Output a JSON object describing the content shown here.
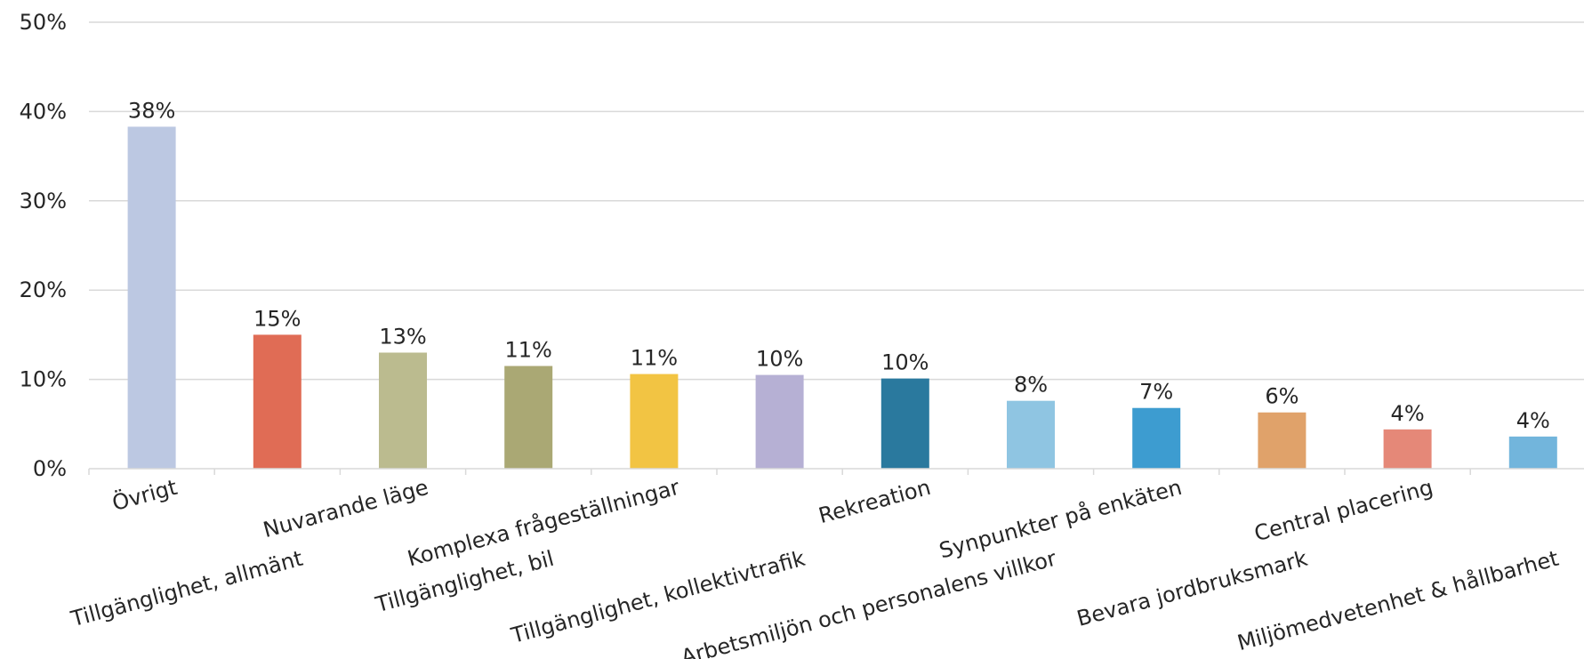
{
  "chart_data": {
    "type": "bar",
    "title": "",
    "xlabel": "",
    "ylabel": "",
    "ylim": [
      0,
      50
    ],
    "y_ticks": [
      "0%",
      "10%",
      "20%",
      "30%",
      "40%",
      "50%"
    ],
    "grid": true,
    "legend": "none",
    "categories": [
      "Övrigt",
      "Tillgänglighet, allmänt",
      "Nuvarande läge",
      "Tillgänglighet, bil",
      "Komplexa frågeställningar",
      "Tillgänglighet, kollektivtrafik",
      "Rekreation",
      "Arbetsmiljön och personalens villkor",
      "Synpunkter på enkäten",
      "Bevara jordbruksmark",
      "Central placering",
      "Miljömedvetenhet & hållbarhet"
    ],
    "values": [
      38.3,
      15.0,
      13.0,
      11.5,
      10.6,
      10.5,
      10.1,
      7.6,
      6.8,
      6.3,
      4.4,
      3.6
    ],
    "data_labels": [
      "38%",
      "15%",
      "13%",
      "11%",
      "11%",
      "10%",
      "10%",
      "8%",
      "7%",
      "6%",
      "4%",
      "4%"
    ],
    "colors": [
      "#bcc8e2",
      "#e06c55",
      "#bbbb8f",
      "#aaa874",
      "#f2c443",
      "#b6b0d4",
      "#2a799e",
      "#8fc5e2",
      "#3d9cd0",
      "#e0a26a",
      "#e58878",
      "#72b5dc"
    ]
  }
}
